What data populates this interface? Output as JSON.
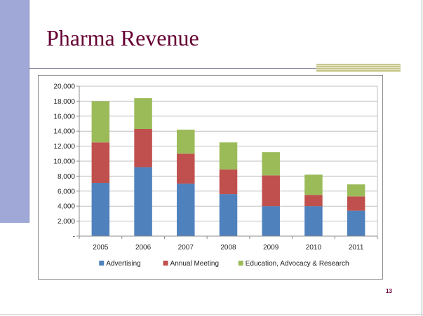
{
  "slide": {
    "title": "Pharma Revenue",
    "page_number": "13"
  },
  "colors": {
    "advertising": "#4f81bd",
    "annual_meeting": "#c0504d",
    "education": "#9bbb59",
    "title": "#660033"
  },
  "chart_data": {
    "type": "bar",
    "stacked": true,
    "title": "",
    "xlabel": "",
    "ylabel": "",
    "categories": [
      "2005",
      "2006",
      "2007",
      "2008",
      "2009",
      "2010",
      "2011"
    ],
    "series": [
      {
        "name": "Advertising",
        "color": "#4f81bd",
        "values": [
          7100,
          9200,
          7000,
          5600,
          4000,
          4000,
          3400
        ]
      },
      {
        "name": "Annual Meeting",
        "color": "#c0504d",
        "values": [
          5400,
          5100,
          4000,
          3300,
          4100,
          1500,
          1900
        ]
      },
      {
        "name": "Education, Advocacy & Research",
        "color": "#9bbb59",
        "values": [
          5500,
          4100,
          3200,
          3600,
          3100,
          2700,
          1600
        ]
      }
    ],
    "ylim": [
      0,
      20000
    ],
    "ytick_labels": [
      "-",
      "2,000",
      "4,000",
      "6,000",
      "8,000",
      "10,000",
      "12,000",
      "14,000",
      "16,000",
      "18,000",
      "20,000"
    ],
    "grid": true,
    "legend_position": "bottom"
  }
}
